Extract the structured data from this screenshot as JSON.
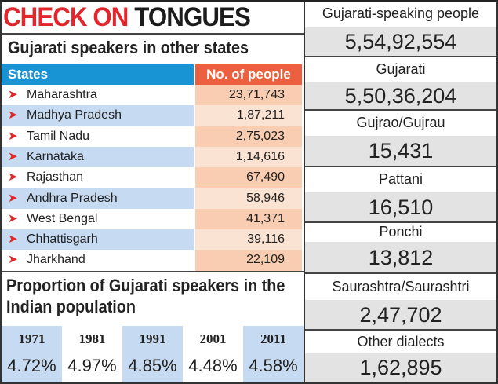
{
  "title": {
    "red": "CHECK ON",
    "black": "TONGUES"
  },
  "states_table": {
    "subtitle": "Gujarati speakers in other states",
    "headers": [
      "States",
      "No. of people"
    ],
    "rows": [
      {
        "state": "Maharashtra",
        "people": "23,71,743"
      },
      {
        "state": "Madhya Pradesh",
        "people": "1,87,211"
      },
      {
        "state": "Tamil Nadu",
        "people": "2,75,023"
      },
      {
        "state": "Karnataka",
        "people": "1,14,616"
      },
      {
        "state": "Rajasthan",
        "people": "67,490"
      },
      {
        "state": "Andhra Pradesh",
        "people": "58,946"
      },
      {
        "state": "West Bengal",
        "people": "41,371"
      },
      {
        "state": "Chhattisgarh",
        "people": "39,116"
      },
      {
        "state": "Jharkhand",
        "people": "22,109"
      }
    ],
    "bullet_icon": "arrowhead-right-icon"
  },
  "proportion": {
    "subtitle": "Proportion of Gujarati speakers in the Indian population",
    "years": [
      {
        "year": "1971",
        "pct": "4.72%"
      },
      {
        "year": "1981",
        "pct": "4.97%"
      },
      {
        "year": "1991",
        "pct": "4.85%"
      },
      {
        "year": "2001",
        "pct": "4.48%"
      },
      {
        "year": "2011",
        "pct": "4.58%"
      }
    ]
  },
  "dialects": [
    {
      "label": "Gujarati-speaking people",
      "value": "5,54,92,554"
    },
    {
      "label": "Gujarati",
      "value": "5,50,36,204"
    },
    {
      "label": "Gujrao/Gujrau",
      "value": "15,431"
    },
    {
      "label": "Pattani",
      "value": "16,510"
    },
    {
      "label": "Ponchi",
      "value": "13,812"
    },
    {
      "label": "Saurashtra/Saurashtri",
      "value": "2,47,702"
    },
    {
      "label": "Other dialects",
      "value": "1,62,895"
    }
  ],
  "colors": {
    "title_red": "#e3262b",
    "states_header": "#1893d4",
    "people_header": "#ec6040",
    "row_blue": "#c6dbf1",
    "row_peach": "#f8cdb1",
    "value_gray": "#e3e3e3"
  }
}
